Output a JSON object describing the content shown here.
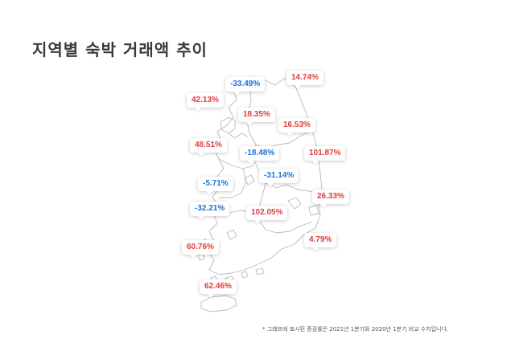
{
  "title": "지역별 숙박 거래액 추이",
  "footnote": "* 그래프에 표시된 증감률은 2021년 1분기와 2020년 1분기 비교 수치입니다.",
  "colors": {
    "increase": "#e23c3c",
    "decrease": "#1a73d6",
    "map_stroke": "#b8b8b8",
    "title": "#3a3a3a"
  },
  "regions": [
    {
      "value": "-33.49%",
      "direction": "decrease"
    },
    {
      "value": "14.74%",
      "direction": "increase"
    },
    {
      "value": "42.13%",
      "direction": "increase"
    },
    {
      "value": "18.35%",
      "direction": "increase"
    },
    {
      "value": "16.53%",
      "direction": "increase"
    },
    {
      "value": "48.51%",
      "direction": "increase"
    },
    {
      "value": "-18.48%",
      "direction": "decrease"
    },
    {
      "value": "101.87%",
      "direction": "increase"
    },
    {
      "value": "-31.14%",
      "direction": "decrease"
    },
    {
      "value": "-5.71%",
      "direction": "decrease"
    },
    {
      "value": "26.33%",
      "direction": "increase"
    },
    {
      "value": "-32.21%",
      "direction": "decrease"
    },
    {
      "value": "102.05%",
      "direction": "increase"
    },
    {
      "value": "60.76%",
      "direction": "increase"
    },
    {
      "value": "4.79%",
      "direction": "increase"
    },
    {
      "value": "62.46%",
      "direction": "increase"
    }
  ]
}
